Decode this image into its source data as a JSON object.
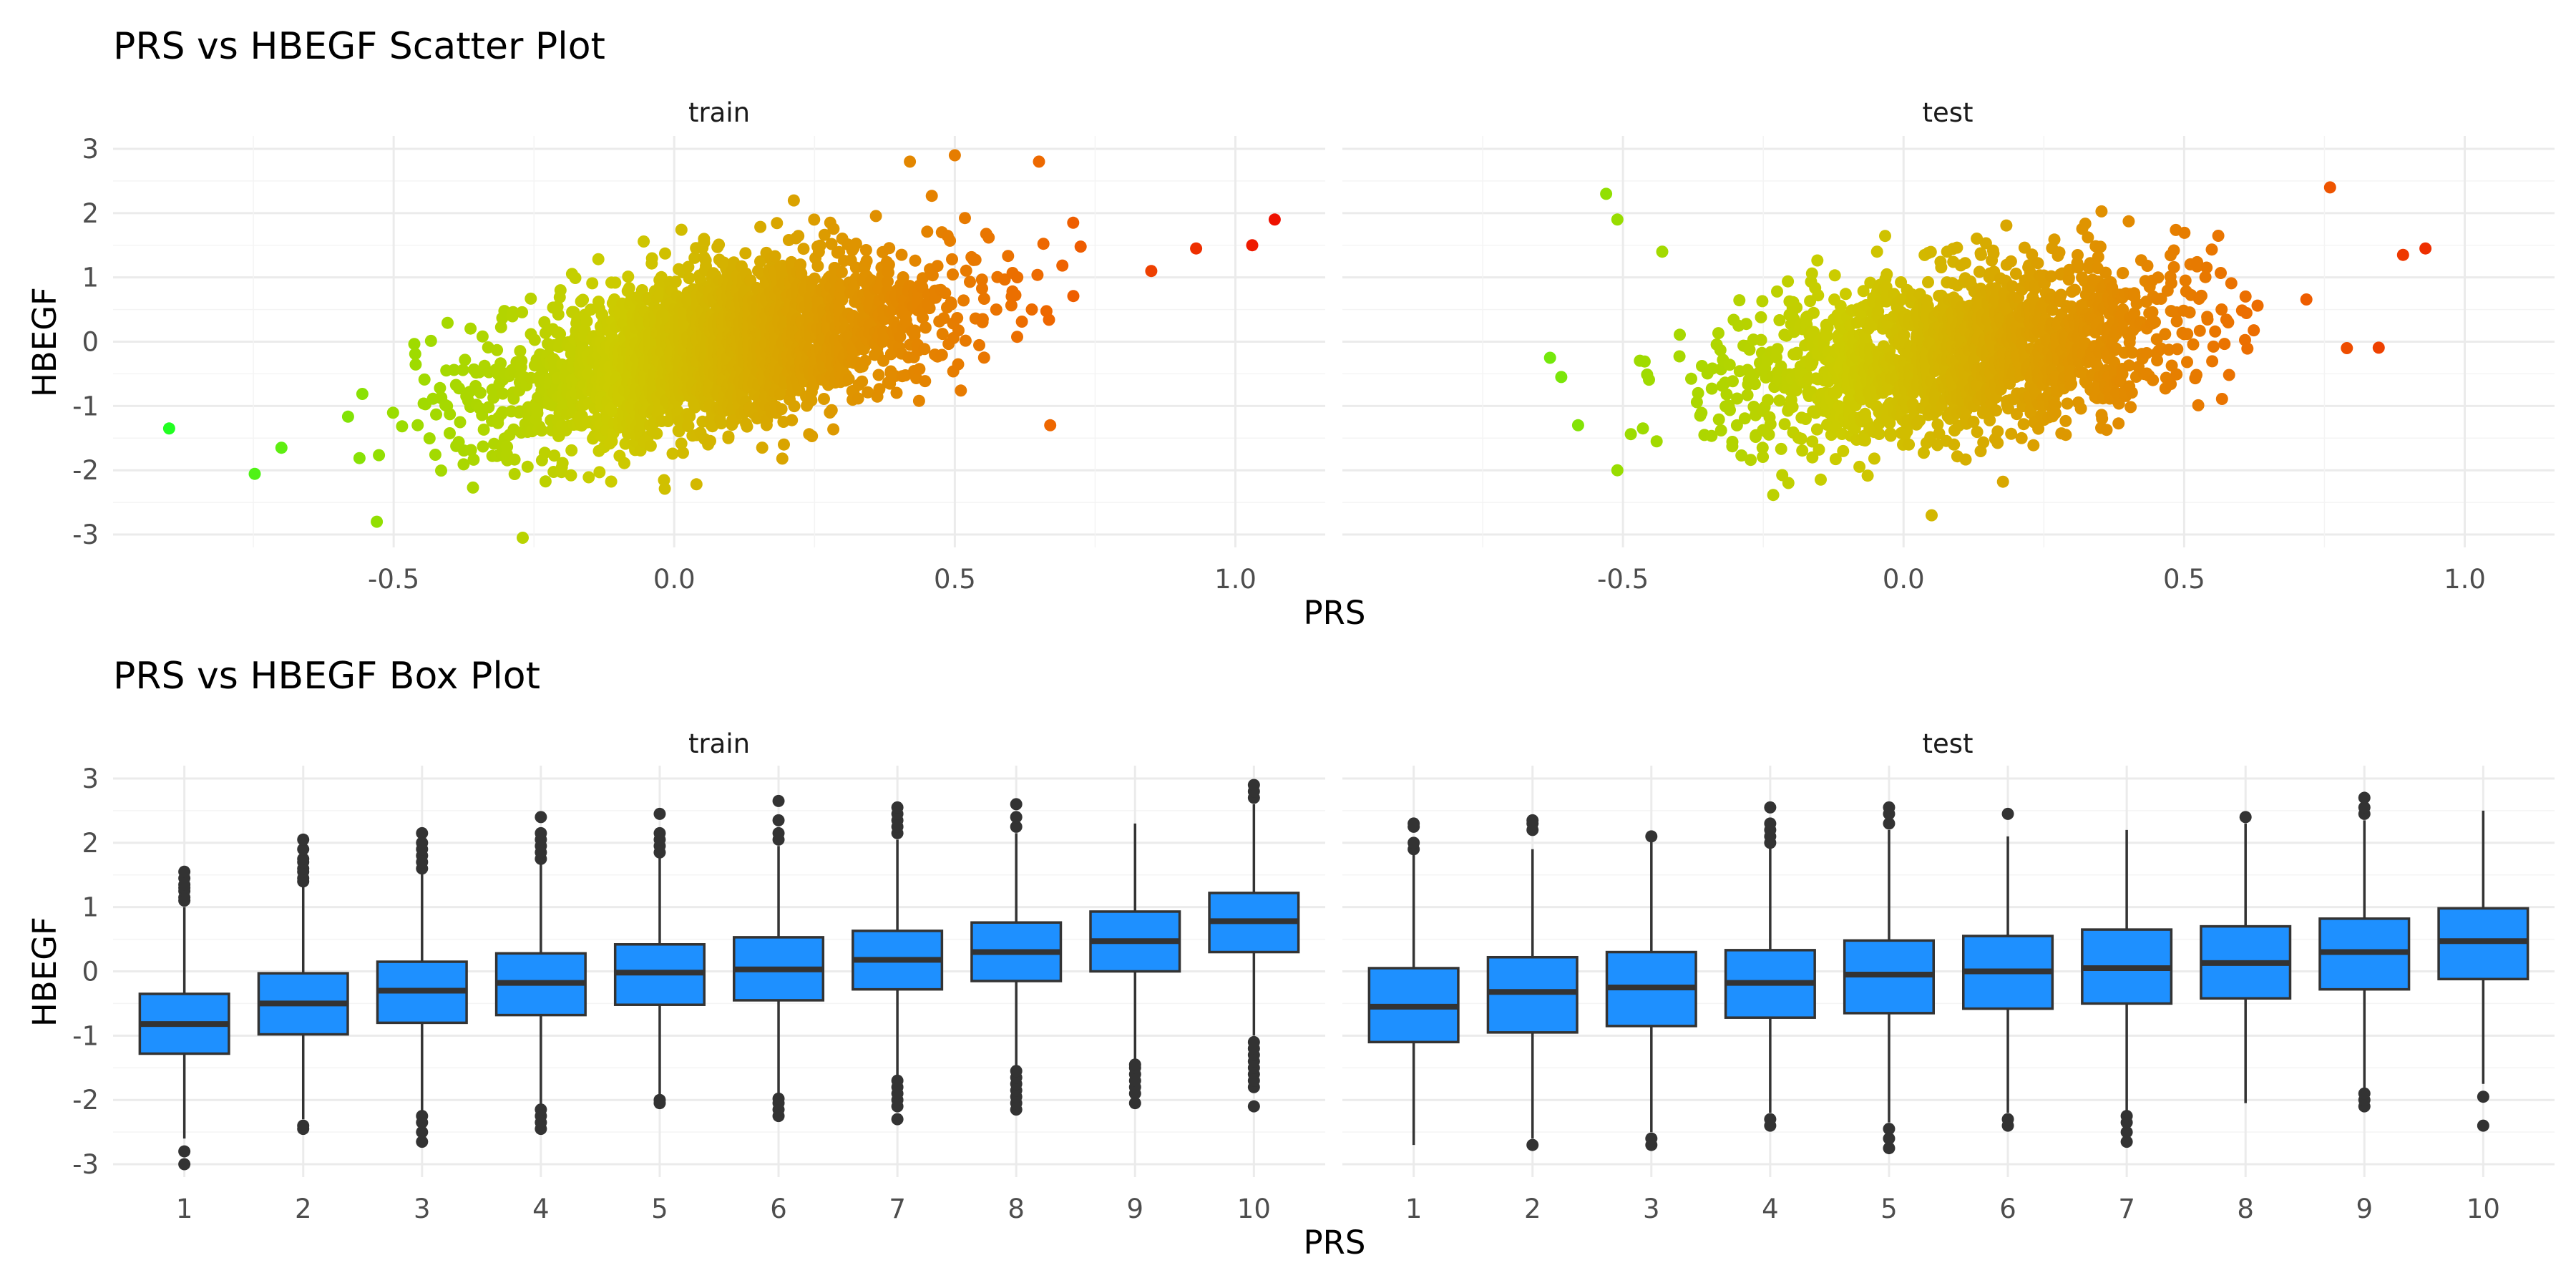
{
  "figure": {
    "scatter_title": "PRS vs HBEGF Scatter Plot",
    "box_title": "PRS vs HBEGF Box Plot",
    "panel_labels": [
      "train",
      "test"
    ],
    "xlabel": "PRS",
    "ylabel": "HBEGF"
  },
  "chart_data": [
    {
      "type": "scatter",
      "title": "PRS vs HBEGF Scatter Plot",
      "xlabel": "PRS",
      "ylabel": "HBEGF",
      "facets": [
        "train",
        "test"
      ],
      "xlim": [
        -1.0,
        1.16
      ],
      "ylim": [
        -3.2,
        3.2
      ],
      "x_ticks": [
        "-0.5",
        "0.0",
        "0.5",
        "1.0"
      ],
      "y_ticks": [
        "-3",
        "-2",
        "-1",
        "0",
        "1",
        "2",
        "3"
      ],
      "grid": true,
      "legend": "none",
      "color_by": "PRS",
      "color_gradient": [
        "#22ff22",
        "#99dd00",
        "#cccc00",
        "#dd9900",
        "#ee6600",
        "#ee1100"
      ],
      "series": [
        {
          "name": "train",
          "cloud": {
            "center": [
              0.08,
              -0.1
            ],
            "sd": [
              0.2,
              0.8
            ],
            "slope": 1.7,
            "n": 2600
          },
          "extremes": [
            {
              "x": -0.9,
              "y": -1.35
            },
            {
              "x": -0.7,
              "y": -1.65
            },
            {
              "x": -0.53,
              "y": -2.8
            },
            {
              "x": -0.27,
              "y": -3.05
            },
            {
              "x": 0.67,
              "y": -1.3
            },
            {
              "x": 0.85,
              "y": 1.1
            },
            {
              "x": 0.93,
              "y": 1.45
            },
            {
              "x": 1.03,
              "y": 1.5
            },
            {
              "x": 1.07,
              "y": 1.9
            },
            {
              "x": 0.5,
              "y": 2.9
            },
            {
              "x": 0.42,
              "y": 2.8
            },
            {
              "x": 0.65,
              "y": 2.8
            }
          ]
        },
        {
          "name": "test",
          "cloud": {
            "center": [
              0.1,
              -0.15
            ],
            "sd": [
              0.2,
              0.8
            ],
            "slope": 1.2,
            "n": 1800
          },
          "extremes": [
            {
              "x": -0.63,
              "y": -0.25
            },
            {
              "x": -0.61,
              "y": -0.55
            },
            {
              "x": -0.58,
              "y": -1.3
            },
            {
              "x": -0.53,
              "y": 2.3
            },
            {
              "x": -0.51,
              "y": 1.9
            },
            {
              "x": -0.51,
              "y": -2.0
            },
            {
              "x": -0.43,
              "y": 1.4
            },
            {
              "x": 0.89,
              "y": 1.35
            },
            {
              "x": 0.93,
              "y": 1.45
            },
            {
              "x": 0.79,
              "y": -0.1
            },
            {
              "x": 0.76,
              "y": 2.4
            },
            {
              "x": 0.05,
              "y": -2.7
            }
          ]
        }
      ]
    },
    {
      "type": "box",
      "title": "PRS vs HBEGF Box Plot",
      "xlabel": "PRS",
      "ylabel": "HBEGF",
      "facets": [
        "train",
        "test"
      ],
      "categories": [
        "1",
        "2",
        "3",
        "4",
        "5",
        "6",
        "7",
        "8",
        "9",
        "10"
      ],
      "ylim": [
        -3.2,
        3.2
      ],
      "y_ticks": [
        "-3",
        "-2",
        "-1",
        "0",
        "1",
        "2",
        "3"
      ],
      "grid": true,
      "legend": "none",
      "box_fill": "#1e90ff",
      "series": [
        {
          "name": "train",
          "boxes": [
            {
              "q1": -1.28,
              "median": -0.82,
              "q3": -0.35,
              "lower": -2.6,
              "upper": 1.0,
              "outliers": [
                -3.0,
                -2.8,
                1.1,
                1.15,
                1.25,
                1.3,
                1.35,
                1.45,
                1.55
              ]
            },
            {
              "q1": -0.98,
              "median": -0.5,
              "q3": -0.03,
              "lower": -2.3,
              "upper": 1.35,
              "outliers": [
                -2.45,
                -2.4,
                1.4,
                1.45,
                1.55,
                1.6,
                1.7,
                1.75,
                1.9,
                2.05
              ]
            },
            {
              "q1": -0.8,
              "median": -0.3,
              "q3": 0.15,
              "lower": -2.2,
              "upper": 1.55,
              "outliers": [
                -2.65,
                -2.5,
                -2.35,
                -2.25,
                1.6,
                1.7,
                1.8,
                1.9,
                2.0,
                2.15
              ]
            },
            {
              "q1": -0.68,
              "median": -0.18,
              "q3": 0.28,
              "lower": -2.1,
              "upper": 1.7,
              "outliers": [
                -2.45,
                -2.35,
                -2.25,
                -2.15,
                1.75,
                1.85,
                1.95,
                2.05,
                2.15,
                2.4
              ]
            },
            {
              "q1": -0.52,
              "median": -0.02,
              "q3": 0.42,
              "lower": -1.95,
              "upper": 1.8,
              "outliers": [
                -2.05,
                -2.0,
                1.85,
                1.95,
                2.05,
                2.15,
                2.45
              ]
            },
            {
              "q1": -0.45,
              "median": 0.03,
              "q3": 0.53,
              "lower": -1.95,
              "upper": 1.95,
              "outliers": [
                -2.25,
                -2.15,
                -2.05,
                -1.98,
                2.05,
                2.15,
                2.35,
                2.65
              ]
            },
            {
              "q1": -0.28,
              "median": 0.18,
              "q3": 0.63,
              "lower": -1.65,
              "upper": 2.05,
              "outliers": [
                -2.3,
                -2.1,
                -2.0,
                -1.9,
                -1.8,
                -1.7,
                2.15,
                2.25,
                2.35,
                2.45,
                2.55
              ]
            },
            {
              "q1": -0.15,
              "median": 0.3,
              "q3": 0.76,
              "lower": -1.5,
              "upper": 2.15,
              "outliers": [
                -2.15,
                -2.05,
                -1.95,
                -1.85,
                -1.75,
                -1.65,
                -1.55,
                2.25,
                2.4,
                2.6
              ]
            },
            {
              "q1": 0.0,
              "median": 0.47,
              "q3": 0.93,
              "lower": -1.4,
              "upper": 2.3,
              "outliers": [
                -2.05,
                -1.9,
                -1.8,
                -1.7,
                -1.6,
                -1.5,
                -1.45
              ]
            },
            {
              "q1": 0.3,
              "median": 0.78,
              "q3": 1.22,
              "lower": -1.0,
              "upper": 2.6,
              "outliers": [
                -2.1,
                -1.8,
                -1.7,
                -1.6,
                -1.5,
                -1.4,
                -1.3,
                -1.2,
                -1.1,
                2.7,
                2.8,
                2.9
              ]
            }
          ]
        },
        {
          "name": "test",
          "boxes": [
            {
              "q1": -1.1,
              "median": -0.55,
              "q3": 0.05,
              "lower": -2.7,
              "upper": 1.85,
              "outliers": [
                1.9,
                2.0,
                2.25,
                2.3
              ]
            },
            {
              "q1": -0.95,
              "median": -0.32,
              "q3": 0.22,
              "lower": -2.6,
              "upper": 1.9,
              "outliers": [
                -2.7,
                2.2,
                2.3,
                2.35
              ]
            },
            {
              "q1": -0.85,
              "median": -0.25,
              "q3": 0.3,
              "lower": -2.5,
              "upper": 2.05,
              "outliers": [
                -2.7,
                -2.6,
                2.1
              ]
            },
            {
              "q1": -0.72,
              "median": -0.18,
              "q3": 0.33,
              "lower": -2.2,
              "upper": 1.95,
              "outliers": [
                -2.4,
                -2.3,
                2.0,
                2.1,
                2.2,
                2.3,
                2.55
              ]
            },
            {
              "q1": -0.65,
              "median": -0.05,
              "q3": 0.48,
              "lower": -2.35,
              "upper": 2.2,
              "outliers": [
                -2.75,
                -2.6,
                -2.45,
                2.3,
                2.45,
                2.55
              ]
            },
            {
              "q1": -0.58,
              "median": 0.0,
              "q3": 0.55,
              "lower": -2.2,
              "upper": 2.1,
              "outliers": [
                -2.4,
                -2.3,
                2.45
              ]
            },
            {
              "q1": -0.5,
              "median": 0.05,
              "q3": 0.65,
              "lower": -2.2,
              "upper": 2.2,
              "outliers": [
                -2.65,
                -2.5,
                -2.35,
                -2.25
              ]
            },
            {
              "q1": -0.42,
              "median": 0.13,
              "q3": 0.7,
              "lower": -2.05,
              "upper": 2.3,
              "outliers": [
                2.4
              ]
            },
            {
              "q1": -0.28,
              "median": 0.3,
              "q3": 0.82,
              "lower": -1.85,
              "upper": 2.35,
              "outliers": [
                -2.1,
                -2.0,
                -1.9,
                2.45,
                2.55,
                2.7
              ]
            },
            {
              "q1": -0.12,
              "median": 0.47,
              "q3": 0.98,
              "lower": -1.75,
              "upper": 2.5,
              "outliers": [
                -2.4,
                -1.95
              ]
            }
          ]
        }
      ]
    }
  ]
}
